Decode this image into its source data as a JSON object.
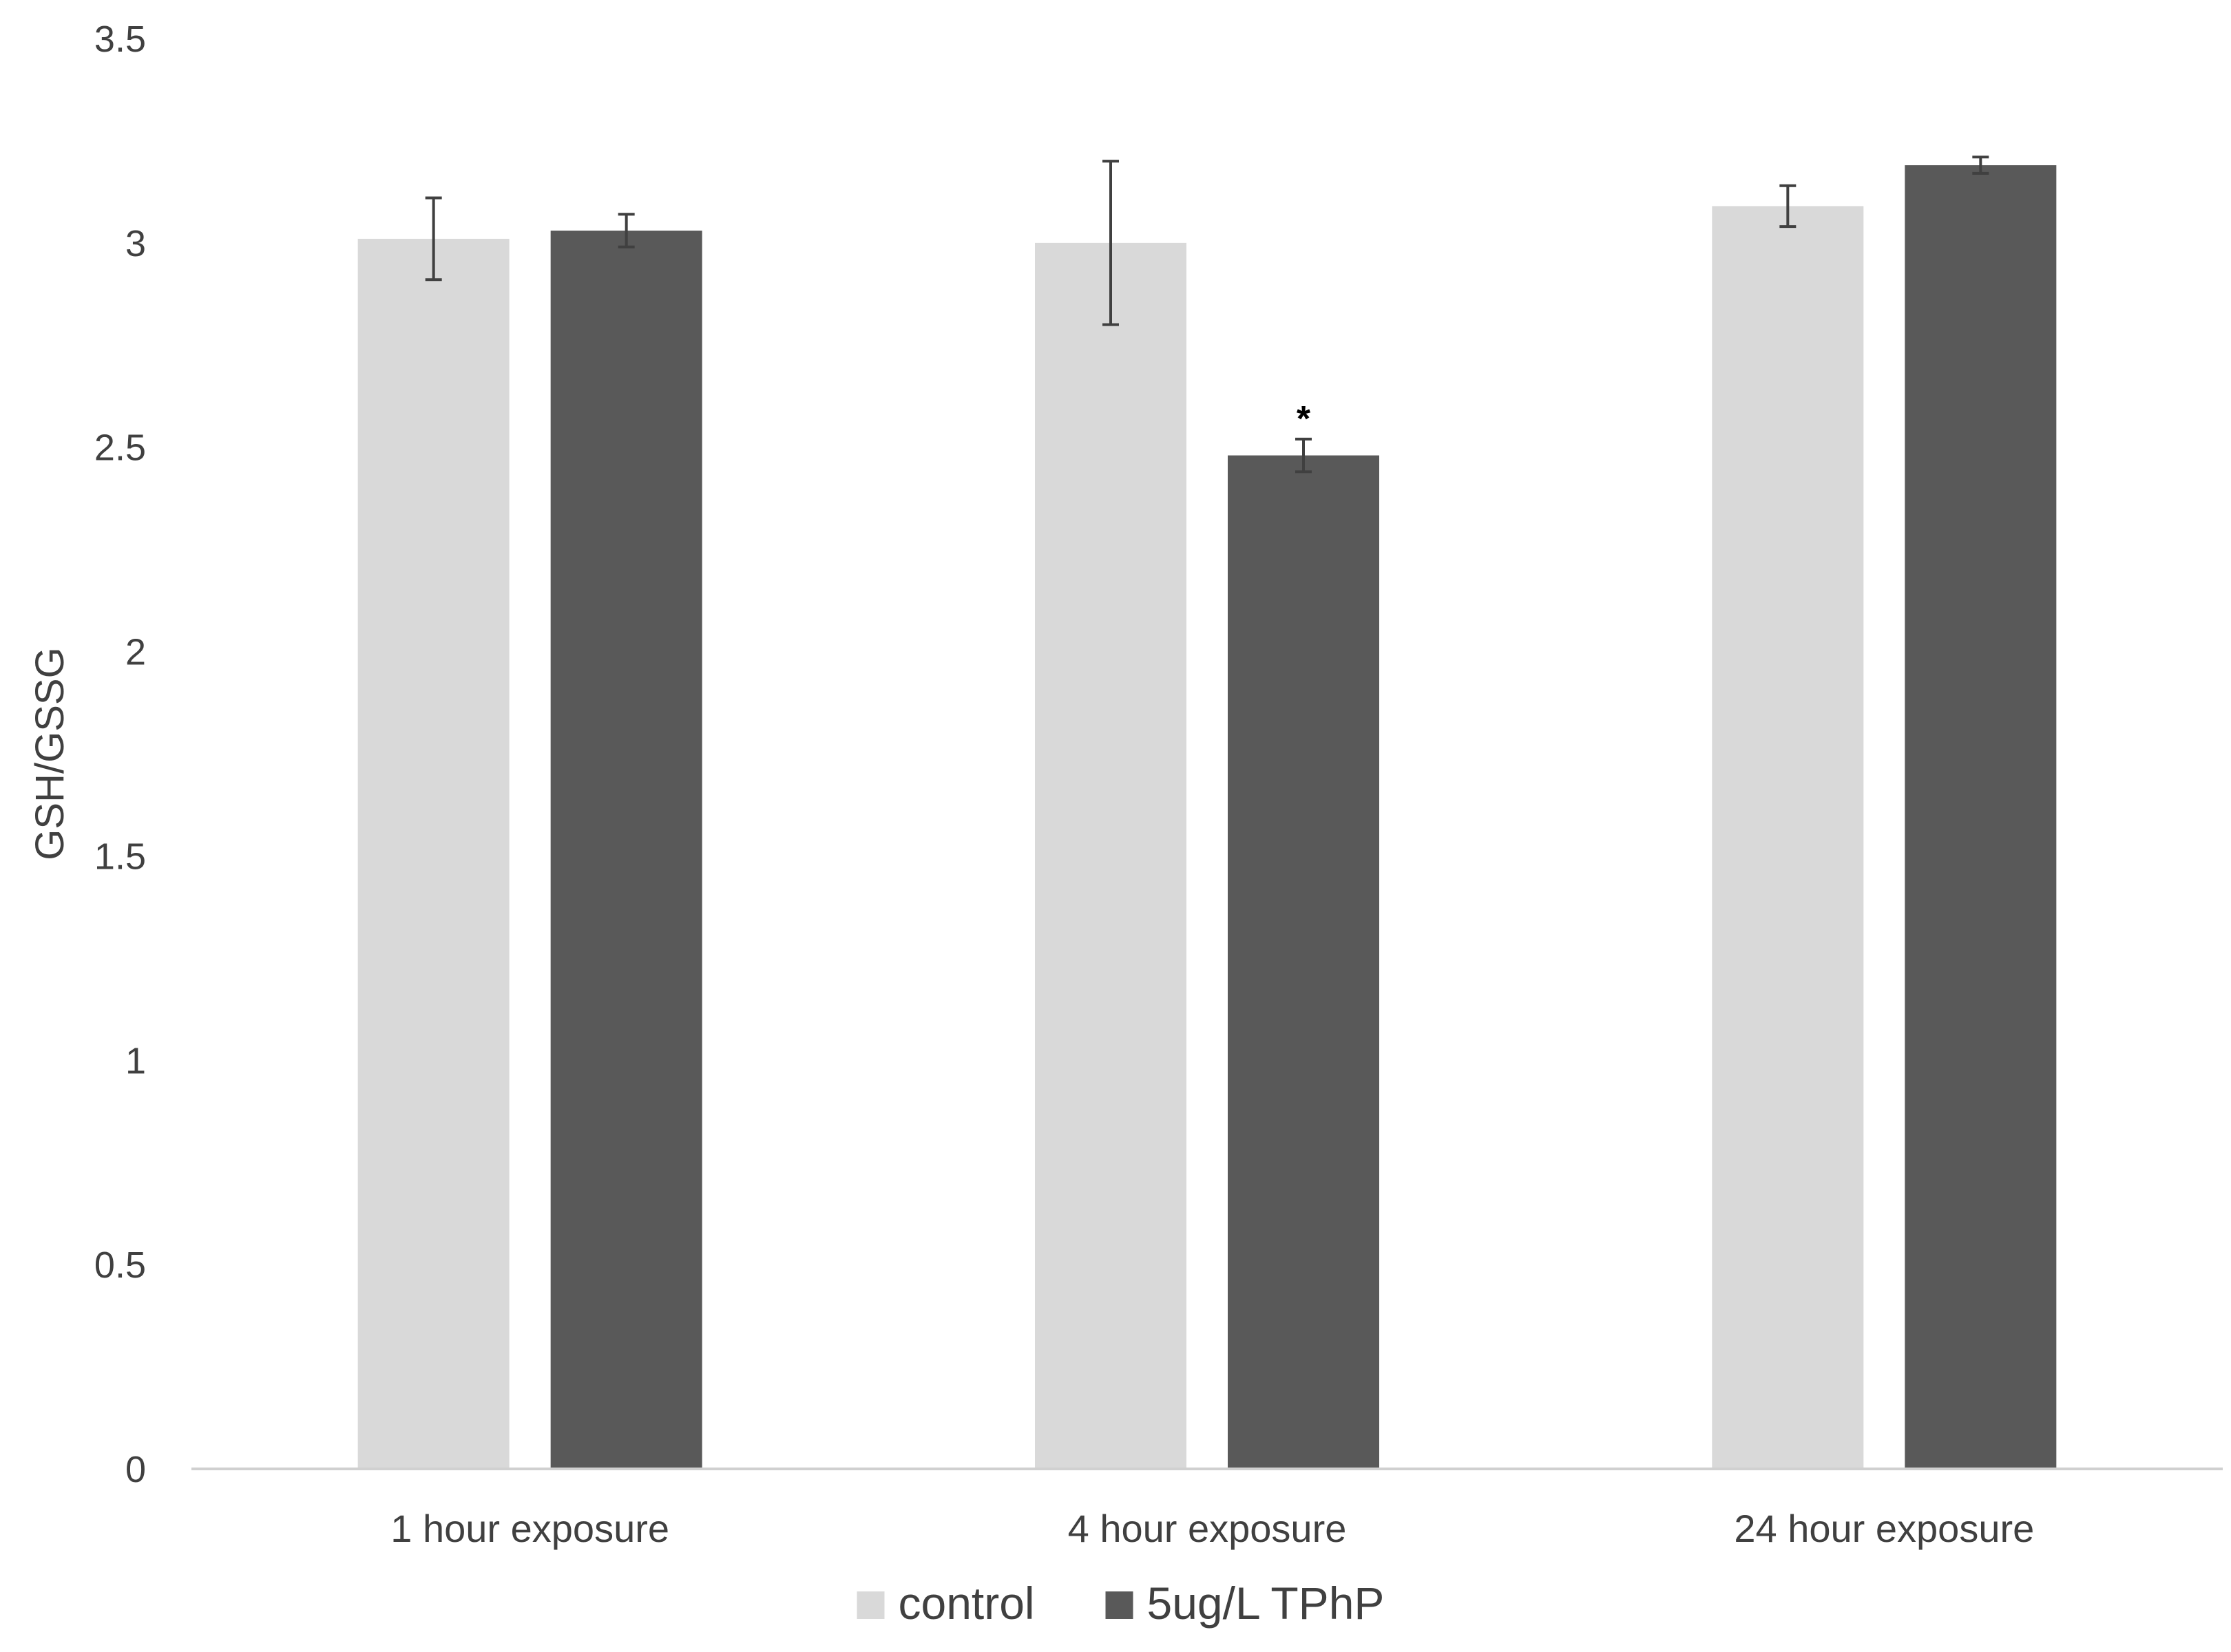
{
  "chart_data": {
    "type": "bar",
    "title": "",
    "xlabel": "",
    "ylabel": "GSH/GSSG",
    "ylim": [
      0,
      3.5
    ],
    "ytick_step": 0.5,
    "yticks": [
      "0",
      "0.5",
      "1",
      "1.5",
      "2",
      "2.5",
      "3",
      "3.5"
    ],
    "categories": [
      "1 hour exposure",
      "4 hour exposure",
      "24 hour exposure"
    ],
    "series": [
      {
        "name": "control",
        "color": "#d9d9d9",
        "values": [
          3.01,
          3.0,
          3.09
        ],
        "errors": [
          0.1,
          0.2,
          0.05
        ]
      },
      {
        "name": "5ug/L TPhP",
        "color": "#595959",
        "values": [
          3.03,
          2.48,
          3.19
        ],
        "errors": [
          0.04,
          0.04,
          0.02
        ]
      }
    ],
    "annotations": [
      {
        "text": "*",
        "category_index": 1,
        "series_index": 1
      }
    ],
    "grid": false,
    "legend_position": "bottom"
  }
}
